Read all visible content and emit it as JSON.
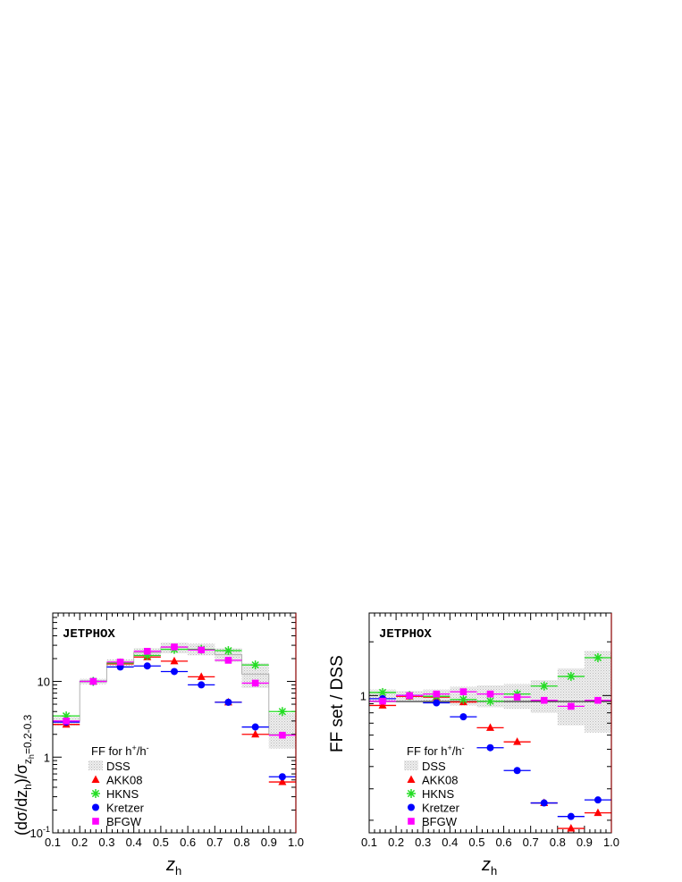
{
  "chart_data": [
    {
      "type": "scatter",
      "panel": "left",
      "annotation": "JETPHOX",
      "ylabel_main": "(dσ/dz",
      "ylabel_sub1": "h",
      "ylabel_mid": ")/σ",
      "ylabel_sub2": "z",
      "ylabel_sub3": "h",
      "ylabel_sub4": "=0.2-0.3",
      "xlabel_main": "z",
      "xlabel_sub": "h",
      "xlim": [
        0.1,
        1.0
      ],
      "ylim": [
        0.1,
        80
      ],
      "yscale": "log",
      "xticks": [
        "0.1",
        "0.2",
        "0.3",
        "0.4",
        "0.5",
        "0.6",
        "0.7",
        "0.8",
        "0.9",
        "1.0"
      ],
      "yticks": [
        {
          "value": 0.1,
          "base": "10",
          "exp": "-1"
        },
        {
          "value": 1,
          "base": "1",
          "exp": ""
        },
        {
          "value": 10,
          "base": "10",
          "exp": ""
        }
      ],
      "legend": {
        "title_main": "FF for h",
        "title_sup1": "+",
        "title_mid": "/h",
        "title_sup2": "-",
        "entries": [
          "DSS",
          "AKK08",
          "HKNS",
          "Kretzer",
          "BFGW"
        ]
      },
      "band": {
        "name": "DSS",
        "x": [
          0.15,
          0.25,
          0.35,
          0.45,
          0.55,
          0.65,
          0.75,
          0.85,
          0.95
        ],
        "center": [
          3.0,
          10.0,
          17.5,
          24.0,
          28.0,
          26.5,
          22.5,
          12.5,
          2.0
        ],
        "lo": [
          2.6,
          9.2,
          15.5,
          20.5,
          23.5,
          22.0,
          18.0,
          8.2,
          1.3
        ],
        "hi": [
          3.4,
          10.8,
          19.5,
          27.5,
          32.5,
          31.5,
          27.5,
          17.5,
          3.8
        ]
      },
      "series": [
        {
          "name": "AKK08",
          "marker": "triangle",
          "color": "#ff0000",
          "y": [
            2.7,
            10.0,
            17.0,
            21.0,
            18.5,
            11.5,
            5.3,
            2.0,
            0.47
          ]
        },
        {
          "name": "HKNS",
          "marker": "star",
          "color": "#22dd22",
          "y": [
            3.5,
            10.0,
            17.5,
            22.0,
            26.5,
            26.5,
            25.5,
            16.5,
            4.0
          ]
        },
        {
          "name": "Kretzer",
          "marker": "circle",
          "color": "#0000ff",
          "y": [
            2.9,
            10.0,
            15.5,
            16.0,
            13.5,
            9.0,
            5.3,
            2.5,
            0.55
          ]
        },
        {
          "name": "BFGW",
          "marker": "square",
          "color": "#ff00ff",
          "y": [
            3.0,
            10.0,
            18.0,
            25.0,
            28.5,
            26.0,
            19.0,
            9.5,
            1.95
          ]
        }
      ]
    },
    {
      "type": "scatter",
      "panel": "right",
      "annotation": "JETPHOX",
      "ylabel": "FF set / DSS",
      "xlabel_main": "z",
      "xlabel_sub": "h",
      "xlim": [
        0.1,
        1.0
      ],
      "ylim": [
        0.17,
        2.9
      ],
      "yscale": "log",
      "xticks": [
        "0.1",
        "0.2",
        "0.3",
        "0.4",
        "0.5",
        "0.6",
        "0.7",
        "0.8",
        "0.9",
        "1.0"
      ],
      "yticks": [
        {
          "value": 1,
          "label": "1"
        }
      ],
      "legend": {
        "title_main": "FF for h",
        "title_sup1": "+",
        "title_mid": "/h",
        "title_sup2": "-",
        "entries": [
          "DSS",
          "AKK08",
          "HKNS",
          "Kretzer",
          "BFGW"
        ]
      },
      "band": {
        "name": "DSS",
        "x": [
          0.15,
          0.25,
          0.35,
          0.45,
          0.55,
          0.65,
          0.75,
          0.85,
          0.95
        ],
        "center": [
          1.0,
          1.0,
          1.0,
          1.0,
          1.0,
          1.0,
          1.0,
          1.0,
          1.0
        ],
        "lo": [
          0.92,
          0.94,
          0.92,
          0.88,
          0.86,
          0.84,
          0.8,
          0.68,
          0.62
        ],
        "hi": [
          1.08,
          1.06,
          1.08,
          1.12,
          1.14,
          1.16,
          1.22,
          1.42,
          1.78
        ]
      },
      "series": [
        {
          "name": "AKK08",
          "marker": "triangle",
          "color": "#ff0000",
          "y": [
            0.88,
            0.99,
            0.98,
            0.92,
            0.66,
            0.55,
            0.25,
            0.18,
            0.22
          ]
        },
        {
          "name": "HKNS",
          "marker": "star",
          "color": "#22dd22",
          "y": [
            1.04,
            1.0,
            0.99,
            0.95,
            0.93,
            1.02,
            1.13,
            1.28,
            1.63
          ]
        },
        {
          "name": "Kretzer",
          "marker": "circle",
          "color": "#0000ff",
          "y": [
            0.96,
            1.0,
            0.91,
            0.76,
            0.51,
            0.38,
            0.25,
            0.21,
            0.26
          ]
        },
        {
          "name": "BFGW",
          "marker": "square",
          "color": "#ff00ff",
          "y": [
            0.93,
            1.0,
            1.02,
            1.05,
            1.02,
            0.98,
            0.94,
            0.87,
            0.94
          ]
        }
      ]
    }
  ]
}
